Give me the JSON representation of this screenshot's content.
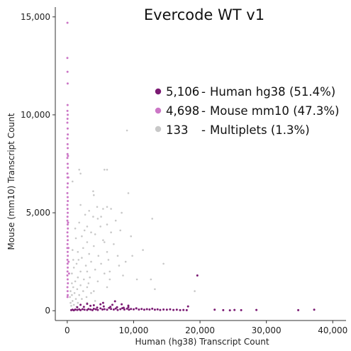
{
  "chart_data": {
    "type": "scatter",
    "title": "Evercode WT v1",
    "xlabel": "Human (hg38) Transcript Count",
    "ylabel": "Mouse (mm10) Transcript Count",
    "xlim": [
      -1800,
      42000
    ],
    "ylim": [
      -500,
      15500
    ],
    "xticks": [
      0,
      10000,
      20000,
      30000,
      40000
    ],
    "xtick_labels": [
      "0",
      "10,000",
      "20,000",
      "30,000",
      "40,000"
    ],
    "yticks": [
      0,
      5000,
      10000,
      15000
    ],
    "ytick_labels": [
      "0",
      "5,000",
      "10,000",
      "15,000"
    ],
    "grid": false,
    "legend_position": "upper-right",
    "series": [
      {
        "name": "Human hg38",
        "count": "5,106",
        "percent": "(51.4%)",
        "color": "#7b1a73",
        "points": [
          [
            600,
            30
          ],
          [
            800,
            50
          ],
          [
            1000,
            20
          ],
          [
            1200,
            60
          ],
          [
            1500,
            40
          ],
          [
            1800,
            70
          ],
          [
            2000,
            30
          ],
          [
            2300,
            80
          ],
          [
            2600,
            50
          ],
          [
            3000,
            40
          ],
          [
            3200,
            90
          ],
          [
            3500,
            60
          ],
          [
            3800,
            30
          ],
          [
            4000,
            100
          ],
          [
            4300,
            70
          ],
          [
            4600,
            40
          ],
          [
            5000,
            120
          ],
          [
            5300,
            60
          ],
          [
            5600,
            80
          ],
          [
            6000,
            50
          ],
          [
            6300,
            140
          ],
          [
            6600,
            90
          ],
          [
            7000,
            60
          ],
          [
            7300,
            110
          ],
          [
            7600,
            40
          ],
          [
            8000,
            80
          ],
          [
            8300,
            130
          ],
          [
            8600,
            60
          ],
          [
            9000,
            100
          ],
          [
            9300,
            50
          ],
          [
            9600,
            90
          ],
          [
            10000,
            70
          ],
          [
            10400,
            120
          ],
          [
            10800,
            60
          ],
          [
            11200,
            90
          ],
          [
            11600,
            50
          ],
          [
            12000,
            80
          ],
          [
            12400,
            60
          ],
          [
            12800,
            100
          ],
          [
            13200,
            50
          ],
          [
            13600,
            70
          ],
          [
            14000,
            40
          ],
          [
            14500,
            60
          ],
          [
            15000,
            50
          ],
          [
            15500,
            70
          ],
          [
            16000,
            40
          ],
          [
            16500,
            50
          ],
          [
            17000,
            30
          ],
          [
            17500,
            40
          ],
          [
            18000,
            30
          ],
          [
            1500,
            180
          ],
          [
            2500,
            200
          ],
          [
            3500,
            250
          ],
          [
            4500,
            160
          ],
          [
            5500,
            220
          ],
          [
            6500,
            200
          ],
          [
            7500,
            180
          ],
          [
            8500,
            150
          ],
          [
            2000,
            300
          ],
          [
            4000,
            280
          ],
          [
            3000,
            350
          ],
          [
            5000,
            330
          ],
          [
            6800,
            300
          ],
          [
            9200,
            260
          ],
          [
            7200,
            480
          ],
          [
            8200,
            330
          ],
          [
            9200,
            180
          ],
          [
            5400,
            400
          ],
          [
            10400,
            120
          ],
          [
            19600,
            1800
          ],
          [
            18200,
            220
          ],
          [
            22200,
            50
          ],
          [
            23500,
            30
          ],
          [
            24500,
            20
          ],
          [
            25200,
            40
          ],
          [
            26200,
            30
          ],
          [
            28500,
            40
          ],
          [
            34800,
            30
          ],
          [
            37200,
            50
          ]
        ]
      },
      {
        "name": "Mouse mm10",
        "count": "4,698",
        "percent": "(47.3%)",
        "color": "#cc77c6",
        "points": [
          [
            30,
            14700
          ],
          [
            20,
            12900
          ],
          [
            40,
            12200
          ],
          [
            60,
            11600
          ],
          [
            50,
            10500
          ],
          [
            30,
            10200
          ],
          [
            70,
            10000
          ],
          [
            40,
            9800
          ],
          [
            20,
            9600
          ],
          [
            60,
            9300
          ],
          [
            80,
            9000
          ],
          [
            30,
            8800
          ],
          [
            50,
            8500
          ],
          [
            70,
            8300
          ],
          [
            40,
            8000
          ],
          [
            20,
            7800
          ],
          [
            60,
            7500
          ],
          [
            90,
            7300
          ],
          [
            30,
            7000
          ],
          [
            50,
            6800
          ],
          [
            70,
            6500
          ],
          [
            40,
            6300
          ],
          [
            20,
            6000
          ],
          [
            60,
            5800
          ],
          [
            80,
            5600
          ],
          [
            30,
            5400
          ],
          [
            50,
            5200
          ],
          [
            70,
            5000
          ],
          [
            40,
            4800
          ],
          [
            20,
            4600
          ],
          [
            60,
            4400
          ],
          [
            90,
            4200
          ],
          [
            30,
            4000
          ],
          [
            50,
            3800
          ],
          [
            70,
            3600
          ],
          [
            40,
            3400
          ],
          [
            20,
            3200
          ],
          [
            60,
            3000
          ],
          [
            80,
            2800
          ],
          [
            30,
            2600
          ],
          [
            50,
            2400
          ],
          [
            70,
            2200
          ],
          [
            40,
            2000
          ],
          [
            20,
            1800
          ],
          [
            60,
            1600
          ],
          [
            90,
            1400
          ],
          [
            30,
            1200
          ],
          [
            50,
            1000
          ],
          [
            70,
            800
          ],
          [
            40,
            700
          ],
          [
            150,
            6800
          ],
          [
            120,
            4500
          ],
          [
            180,
            3200
          ],
          [
            200,
            2500
          ],
          [
            110,
            7900
          ],
          [
            260,
            1900
          ]
        ]
      },
      {
        "name": "Multiplets",
        "count": "133",
        "percent": "(1.3%)",
        "color": "#c8c8c8",
        "points": [
          [
            9000,
            9200
          ],
          [
            1800,
            7200
          ],
          [
            5600,
            7200
          ],
          [
            6000,
            7200
          ],
          [
            2000,
            7000
          ],
          [
            3900,
            6100
          ],
          [
            9200,
            6000
          ],
          [
            4000,
            5900
          ],
          [
            2000,
            5400
          ],
          [
            6000,
            5300
          ],
          [
            4500,
            5300
          ],
          [
            6600,
            5200
          ],
          [
            5400,
            5200
          ],
          [
            3300,
            5100
          ],
          [
            8200,
            5000
          ],
          [
            2700,
            4900
          ],
          [
            5100,
            4800
          ],
          [
            3900,
            4800
          ],
          [
            4600,
            4700
          ],
          [
            12800,
            4700
          ],
          [
            7300,
            4600
          ],
          [
            1800,
            4500
          ],
          [
            6000,
            4400
          ],
          [
            3000,
            4300
          ],
          [
            5000,
            4300
          ],
          [
            1200,
            4200
          ],
          [
            8000,
            4100
          ],
          [
            6600,
            4000
          ],
          [
            3600,
            4000
          ],
          [
            4200,
            3900
          ],
          [
            2200,
            3800
          ],
          [
            9600,
            3800
          ],
          [
            1300,
            3700
          ],
          [
            5400,
            3600
          ],
          [
            3000,
            3500
          ],
          [
            7000,
            3400
          ],
          [
            4000,
            3300
          ],
          [
            2400,
            3200
          ],
          [
            11400,
            3100
          ],
          [
            800,
            3100
          ],
          [
            6000,
            3000
          ],
          [
            1600,
            3000
          ],
          [
            3300,
            2900
          ],
          [
            4700,
            2800
          ],
          [
            9800,
            2800
          ],
          [
            2200,
            2700
          ],
          [
            900,
            2600
          ],
          [
            6200,
            2600
          ],
          [
            3600,
            2500
          ],
          [
            1400,
            2400
          ],
          [
            5100,
            2400
          ],
          [
            7800,
            2300
          ],
          [
            2800,
            2300
          ],
          [
            1000,
            2200
          ],
          [
            4200,
            2100
          ],
          [
            3000,
            2000
          ],
          [
            2000,
            2000
          ],
          [
            700,
            1900
          ],
          [
            5600,
            1900
          ],
          [
            8400,
            1800
          ],
          [
            1600,
            1700
          ],
          [
            3400,
            1700
          ],
          [
            2500,
            1600
          ],
          [
            1200,
            1500
          ],
          [
            4600,
            1500
          ],
          [
            700,
            1400
          ],
          [
            2000,
            1300
          ],
          [
            3000,
            1200
          ],
          [
            900,
            1200
          ],
          [
            6000,
            1200
          ],
          [
            1500,
            1100
          ],
          [
            2400,
            1000
          ],
          [
            500,
            1000
          ],
          [
            3600,
            900
          ],
          [
            1100,
            900
          ],
          [
            1800,
            800
          ],
          [
            700,
            800
          ],
          [
            2900,
            700
          ],
          [
            400,
            700
          ],
          [
            1300,
            600
          ],
          [
            2200,
            600
          ],
          [
            800,
            500
          ],
          [
            4200,
            500
          ],
          [
            1600,
            400
          ],
          [
            500,
            400
          ],
          [
            3000,
            400
          ],
          [
            1000,
            300
          ],
          [
            2000,
            300
          ],
          [
            600,
            250
          ],
          [
            1400,
            200
          ],
          [
            10500,
            1600
          ],
          [
            14500,
            2400
          ],
          [
            7600,
            2800
          ],
          [
            5600,
            3500
          ],
          [
            2600,
            4100
          ],
          [
            3200,
            1400
          ],
          [
            4000,
            1000
          ],
          [
            8800,
            2500
          ],
          [
            1700,
            2600
          ],
          [
            6400,
            2000
          ],
          [
            12600,
            1600
          ],
          [
            13200,
            1100
          ],
          [
            6400,
            1600
          ],
          [
            19200,
            1000
          ],
          [
            800,
            6600
          ]
        ]
      }
    ]
  }
}
